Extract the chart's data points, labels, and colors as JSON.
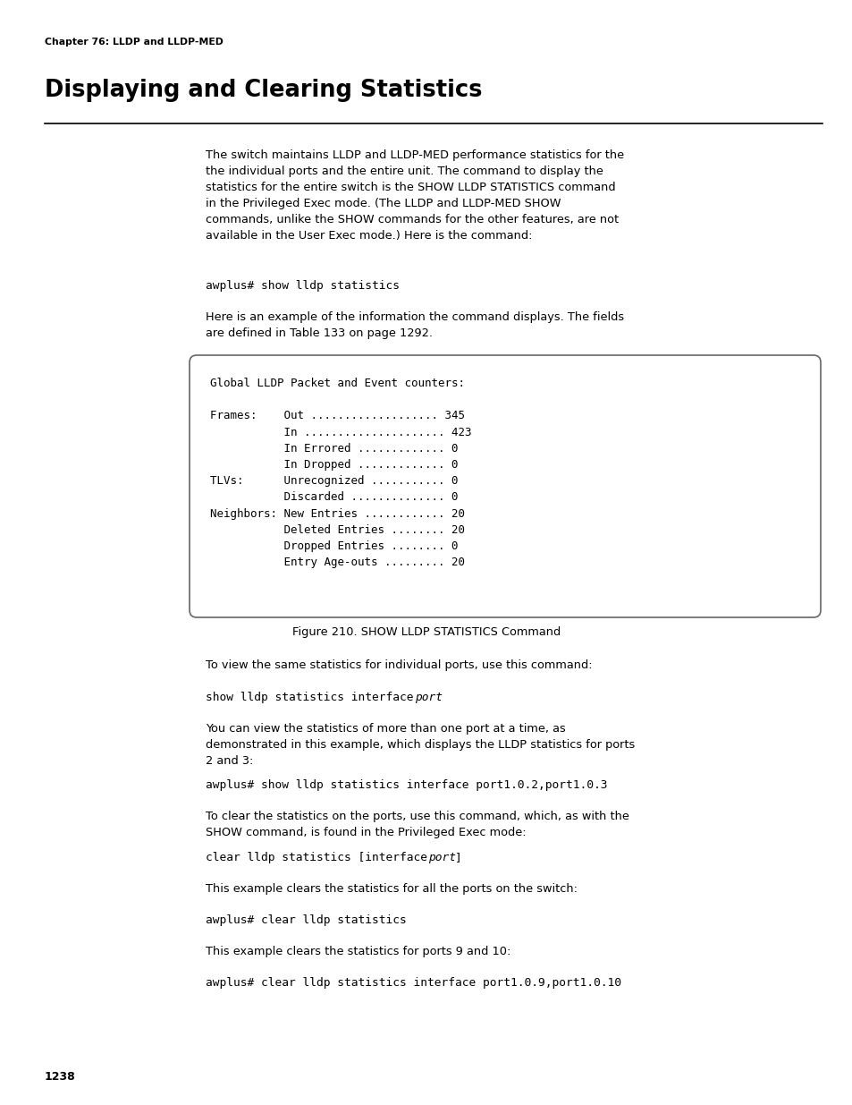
{
  "bg_color": "#ffffff",
  "page_width": 9.54,
  "page_height": 12.35,
  "dpi": 100,
  "chapter_label": "Chapter 76: LLDP and LLDP-MED",
  "title": "Displaying and Clearing Statistics",
  "page_number": "1238",
  "code_box_lines": [
    "Global LLDP Packet and Event counters:",
    "",
    "Frames:    Out ................... 345",
    "           In ..................... 423",
    "           In Errored ............. 0",
    "           In Dropped ............. 0",
    "TLVs:      Unrecognized ........... 0",
    "           Discarded .............. 0",
    "Neighbors: New Entries ............ 20",
    "           Deleted Entries ........ 20",
    "           Dropped Entries ........ 0",
    "           Entry Age-outs ......... 20"
  ],
  "figure_caption": "Figure 210. SHOW LLDP STATISTICS Command"
}
